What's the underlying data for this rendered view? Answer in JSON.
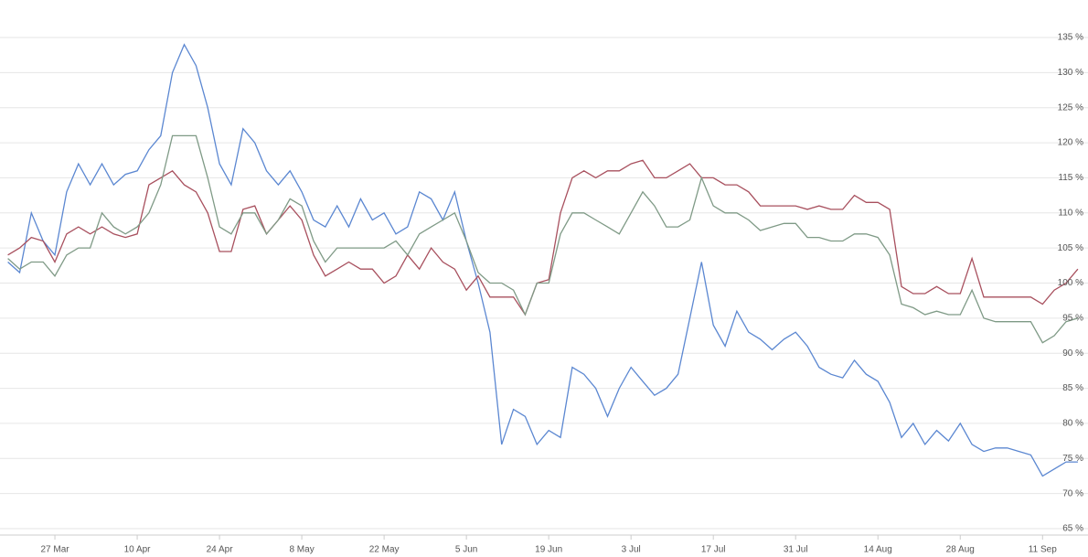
{
  "chart_data": {
    "type": "line",
    "categories": [
      null,
      null,
      null,
      null,
      "27 Mar",
      null,
      null,
      null,
      null,
      null,
      null,
      "10 Apr",
      null,
      null,
      null,
      null,
      null,
      null,
      "24 Apr",
      null,
      null,
      null,
      null,
      null,
      null,
      "8 May",
      null,
      null,
      null,
      null,
      null,
      null,
      "22 May",
      null,
      null,
      null,
      null,
      null,
      null,
      "5 Jun",
      null,
      null,
      null,
      null,
      null,
      null,
      "19 Jun",
      null,
      null,
      null,
      null,
      null,
      null,
      "3 Jul",
      null,
      null,
      null,
      null,
      null,
      null,
      "17 Jul",
      null,
      null,
      null,
      null,
      null,
      null,
      "31 Jul",
      null,
      null,
      null,
      null,
      null,
      null,
      "14 Aug",
      null,
      null,
      null,
      null,
      null,
      null,
      "28 Aug",
      null,
      null,
      null,
      null,
      null,
      null,
      "11 Sep",
      null,
      null,
      null
    ],
    "series": [
      {
        "color": "#5b87d1",
        "values": [
          103,
          101.5,
          110,
          106,
          104,
          113,
          117,
          114,
          117,
          114,
          115.5,
          116,
          119,
          121,
          130,
          134,
          131,
          125,
          117,
          114,
          122,
          120,
          116,
          114,
          116,
          113,
          109,
          108,
          111,
          108,
          112,
          109,
          110,
          107,
          108,
          113,
          112,
          109,
          113,
          106,
          100,
          93,
          77,
          82,
          81,
          77,
          79,
          78,
          88,
          87,
          85,
          81,
          85,
          88,
          86,
          84,
          85,
          87,
          95,
          103,
          94,
          91,
          96,
          93,
          92,
          90.5,
          92,
          93,
          91,
          88,
          87,
          86.5,
          89,
          87,
          86,
          83,
          78,
          80,
          77,
          79,
          77.5,
          80,
          77,
          76,
          76.5,
          76.5,
          76,
          75.5,
          72.5,
          73.5,
          74.5,
          74.5
        ]
      },
      {
        "color": "#a8505e",
        "values": [
          104,
          105,
          106.5,
          106,
          103,
          107,
          108,
          107,
          108,
          107,
          106.5,
          107,
          114,
          115,
          116,
          114,
          113,
          110,
          104.5,
          104.5,
          110.5,
          111,
          107,
          109,
          111,
          109,
          104,
          101,
          102,
          103,
          102,
          102,
          100,
          101,
          104,
          102,
          105,
          103,
          102,
          99,
          101,
          98,
          98,
          98,
          95.5,
          100,
          100.5,
          110,
          115,
          116,
          115,
          116,
          116,
          117,
          117.5,
          115,
          115,
          116,
          117,
          115,
          115,
          114,
          114,
          113,
          111,
          111,
          111,
          111,
          110.5,
          111,
          110.5,
          110.5,
          112.5,
          111.5,
          111.5,
          110.5,
          99.5,
          98.5,
          98.5,
          99.5,
          98.5,
          98.5,
          103.5,
          98,
          98,
          98,
          98,
          98,
          97,
          99,
          100,
          102
        ]
      },
      {
        "color": "#7f9a86",
        "values": [
          103.5,
          102,
          103,
          103,
          101,
          104,
          105,
          105,
          110,
          108,
          107,
          108,
          110,
          114,
          121,
          121,
          121,
          115,
          108,
          107,
          110,
          110,
          107,
          109,
          112,
          111,
          106,
          103,
          105,
          105,
          105,
          105,
          105,
          106,
          104,
          107,
          108,
          109,
          110,
          106,
          101.5,
          100,
          100,
          99,
          95.5,
          100,
          100,
          107,
          110,
          110,
          109,
          108,
          107,
          110,
          113,
          111,
          108,
          108,
          109,
          115,
          111,
          110,
          110,
          109,
          107.5,
          108,
          108.5,
          108.5,
          106.5,
          106.5,
          106,
          106,
          107,
          107,
          106.5,
          104,
          97,
          96.5,
          95.5,
          96,
          95.5,
          95.5,
          99,
          95,
          94.5,
          94.5,
          94.5,
          94.5,
          91.5,
          92.5,
          94.5,
          95
        ]
      }
    ],
    "ylim": [
      65,
      135
    ],
    "yticks": [
      {
        "value": 65,
        "label": "65 %"
      },
      {
        "value": 70,
        "label": "70 %"
      },
      {
        "value": 75,
        "label": "75 %"
      },
      {
        "value": 80,
        "label": "80 %"
      },
      {
        "value": 85,
        "label": "85 %"
      },
      {
        "value": 90,
        "label": "90 %"
      },
      {
        "value": 95,
        "label": "95 %"
      },
      {
        "value": 100,
        "label": "100 %"
      },
      {
        "value": 105,
        "label": "105 %"
      },
      {
        "value": 110,
        "label": "110 %"
      },
      {
        "value": 115,
        "label": "115 %"
      },
      {
        "value": 120,
        "label": "120 %"
      },
      {
        "value": 125,
        "label": "125 %"
      },
      {
        "value": 130,
        "label": "130 %"
      },
      {
        "value": 135,
        "label": "135 %"
      }
    ],
    "grid": true
  }
}
